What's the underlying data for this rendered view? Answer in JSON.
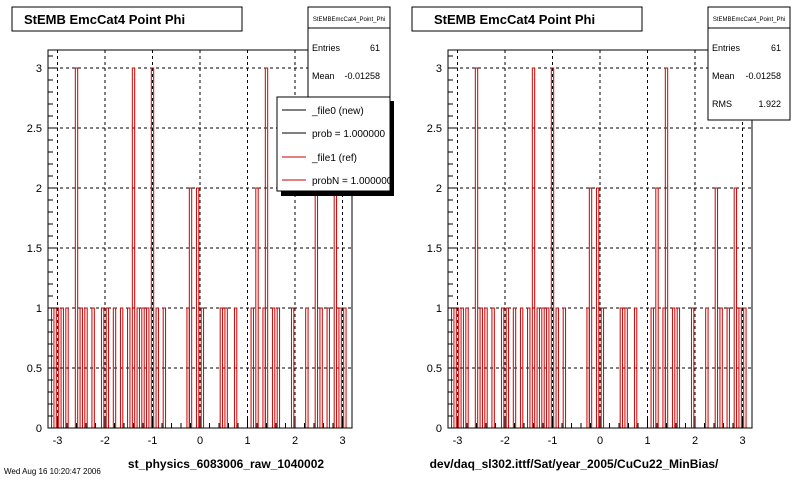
{
  "colors": {
    "background": "#ffffff",
    "frame": "#000000",
    "grid": "#000000",
    "series_new": "#000000",
    "series_ref": "#cc0000"
  },
  "footer_left": "Wed Aug 16 10:20:47 2006",
  "chart_data": [
    {
      "type": "histogram",
      "title": "StEMB EmcCat4 Point Phi",
      "xlabel": "st_physics_6083006_raw_1040002",
      "xlim": [
        -3.2,
        3.2
      ],
      "ylim": [
        0,
        3.15
      ],
      "xticks": [
        -3,
        -2,
        -1,
        0,
        1,
        2,
        3
      ],
      "yticks": [
        0,
        0.5,
        1,
        1.5,
        2,
        2.5,
        3
      ],
      "grid": true,
      "stats": {
        "name": "StEMBEmcCat4_Point_Phi",
        "rows": [
          {
            "label": "Entries",
            "value": "61"
          },
          {
            "label": "Mean",
            "value": "-0.01258"
          }
        ]
      },
      "legend": {
        "placement": "top-right",
        "entries": [
          {
            "label": "_file0 (new)",
            "color": "#000000"
          },
          {
            "label": "prob = 1.000000",
            "color": "#000000"
          },
          {
            "label": "_file1 (ref)",
            "color": "#cc0000"
          },
          {
            "label": "probN = 1.000000",
            "color": "#cc0000"
          }
        ]
      },
      "series": [
        {
          "name": "_file1 (ref)",
          "color": "#cc0000",
          "bins": [
            [
              -3.1,
              1
            ],
            [
              -3.0,
              1
            ],
            [
              -2.9,
              1
            ],
            [
              -2.8,
              1
            ],
            [
              -2.6,
              3
            ],
            [
              -2.5,
              1
            ],
            [
              -2.4,
              1
            ],
            [
              -2.25,
              1
            ],
            [
              -2.05,
              1
            ],
            [
              -1.95,
              1
            ],
            [
              -1.8,
              1
            ],
            [
              -1.65,
              1
            ],
            [
              -1.5,
              1
            ],
            [
              -1.4,
              3
            ],
            [
              -1.3,
              1
            ],
            [
              -1.2,
              1
            ],
            [
              -1.1,
              1
            ],
            [
              -1.0,
              3
            ],
            [
              -0.9,
              1
            ],
            [
              -0.75,
              1
            ],
            [
              -0.25,
              1
            ],
            [
              -0.2,
              2
            ],
            [
              -0.05,
              2
            ],
            [
              0.05,
              1
            ],
            [
              0.45,
              1
            ],
            [
              0.55,
              1
            ],
            [
              0.75,
              1
            ],
            [
              1.1,
              1
            ],
            [
              1.2,
              2
            ],
            [
              1.35,
              1
            ],
            [
              1.4,
              3
            ],
            [
              1.55,
              1
            ],
            [
              1.65,
              1
            ],
            [
              1.95,
              1
            ],
            [
              2.25,
              1
            ],
            [
              2.45,
              2
            ],
            [
              2.55,
              1
            ],
            [
              2.7,
              1
            ],
            [
              2.85,
              2
            ],
            [
              2.95,
              1
            ],
            [
              3.05,
              1
            ]
          ]
        }
      ]
    },
    {
      "type": "histogram",
      "title": "StEMB EmcCat4 Point Phi",
      "xlabel": "dev/daq_sl302.ittf/Sat/year_2005/CuCu22_MinBias/",
      "xlim": [
        -3.2,
        3.2
      ],
      "ylim": [
        0,
        3.15
      ],
      "xticks": [
        -3,
        -2,
        -1,
        0,
        1,
        2,
        3
      ],
      "yticks": [
        0,
        0.5,
        1,
        1.5,
        2,
        2.5,
        3
      ],
      "grid": true,
      "stats": {
        "name": "StEMBEmcCat4_Point_Phi",
        "rows": [
          {
            "label": "Entries",
            "value": "61"
          },
          {
            "label": "Mean",
            "value": "-0.01258"
          },
          {
            "label": "RMS",
            "value": "1.922"
          }
        ]
      },
      "series": [
        {
          "name": "_file1 (ref)",
          "color": "#cc0000",
          "bins": [
            [
              -3.1,
              1
            ],
            [
              -3.0,
              1
            ],
            [
              -2.9,
              1
            ],
            [
              -2.8,
              1
            ],
            [
              -2.6,
              3
            ],
            [
              -2.5,
              1
            ],
            [
              -2.4,
              1
            ],
            [
              -2.25,
              1
            ],
            [
              -2.05,
              1
            ],
            [
              -1.95,
              1
            ],
            [
              -1.8,
              1
            ],
            [
              -1.65,
              1
            ],
            [
              -1.5,
              1
            ],
            [
              -1.4,
              3
            ],
            [
              -1.3,
              1
            ],
            [
              -1.2,
              1
            ],
            [
              -1.1,
              1
            ],
            [
              -1.0,
              3
            ],
            [
              -0.9,
              1
            ],
            [
              -0.75,
              1
            ],
            [
              -0.25,
              1
            ],
            [
              -0.2,
              2
            ],
            [
              -0.05,
              2
            ],
            [
              0.05,
              1
            ],
            [
              0.45,
              1
            ],
            [
              0.55,
              1
            ],
            [
              0.75,
              1
            ],
            [
              1.1,
              1
            ],
            [
              1.2,
              2
            ],
            [
              1.35,
              1
            ],
            [
              1.4,
              3
            ],
            [
              1.55,
              1
            ],
            [
              1.65,
              1
            ],
            [
              1.95,
              1
            ],
            [
              2.25,
              1
            ],
            [
              2.45,
              2
            ],
            [
              2.55,
              1
            ],
            [
              2.7,
              1
            ],
            [
              2.85,
              2
            ],
            [
              2.95,
              1
            ],
            [
              3.05,
              1
            ]
          ]
        }
      ]
    }
  ]
}
